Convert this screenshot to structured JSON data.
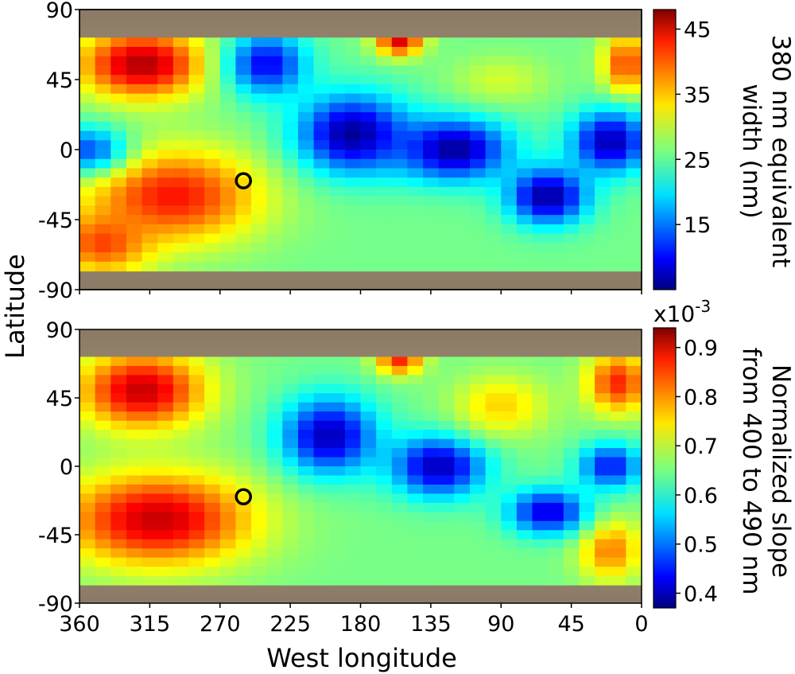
{
  "chart_data": [
    {
      "type": "heatmap",
      "panel": "top",
      "xlim": [
        360,
        0
      ],
      "ylim": [
        -90,
        90
      ],
      "x_ticks": [
        360,
        315,
        270,
        225,
        180,
        135,
        90,
        45,
        0
      ],
      "y_ticks": [
        90,
        45,
        0,
        -45,
        -90
      ],
      "y_tick_labels": [
        "90",
        "45",
        "0",
        "-45",
        "-90"
      ],
      "colorbar": {
        "label_lines": [
          "380 nm equivalent",
          "width (nm)"
        ],
        "range": [
          5,
          48
        ],
        "ticks": [
          45,
          35,
          25,
          15
        ],
        "tick_labels": [
          "45",
          "35",
          "25",
          "15"
        ],
        "colormap": "jet"
      },
      "marker": {
        "lon": 255,
        "lat": -20,
        "shape": "open-circle"
      },
      "blobs": [
        {
          "lon": 320,
          "lat": 55,
          "v": 46,
          "rx": 40,
          "ry": 22
        },
        {
          "lon": 300,
          "lat": -30,
          "v": 42,
          "rx": 55,
          "ry": 30
        },
        {
          "lon": 345,
          "lat": -60,
          "v": 40,
          "rx": 30,
          "ry": 20
        },
        {
          "lon": 155,
          "lat": 70,
          "v": 44,
          "rx": 15,
          "ry": 10
        },
        {
          "lon": 10,
          "lat": 55,
          "v": 40,
          "rx": 15,
          "ry": 20
        },
        {
          "lon": 240,
          "lat": 55,
          "v": 10,
          "rx": 25,
          "ry": 20
        },
        {
          "lon": 185,
          "lat": 10,
          "v": 6,
          "rx": 35,
          "ry": 25
        },
        {
          "lon": 120,
          "lat": 0,
          "v": 6,
          "rx": 35,
          "ry": 20
        },
        {
          "lon": 60,
          "lat": -30,
          "v": 6,
          "rx": 25,
          "ry": 18
        },
        {
          "lon": 20,
          "lat": 5,
          "v": 7,
          "rx": 25,
          "ry": 20
        },
        {
          "lon": 355,
          "lat": 0,
          "v": 14,
          "rx": 25,
          "ry": 15
        },
        {
          "lon": 90,
          "lat": 45,
          "v": 30,
          "rx": 30,
          "ry": 15
        }
      ],
      "base_value": 26
    },
    {
      "type": "heatmap",
      "panel": "bottom",
      "xlabel": "West longitude",
      "ylabel": "Latitude",
      "xlim": [
        360,
        0
      ],
      "ylim": [
        -90,
        90
      ],
      "x_ticks": [
        360,
        315,
        270,
        225,
        180,
        135,
        90,
        45,
        0
      ],
      "x_tick_labels": [
        "360",
        "315",
        "270",
        "225",
        "180",
        "135",
        "90",
        "45",
        "0"
      ],
      "y_ticks": [
        90,
        45,
        0,
        -45,
        -90
      ],
      "y_tick_labels": [
        "90",
        "45",
        "0",
        "-45",
        "-90"
      ],
      "colorbar": {
        "label_lines": [
          "Normalized slope",
          "from 400 to 490 nm"
        ],
        "scale_text": "x10",
        "scale_exponent": "-3",
        "range": [
          0.37,
          0.94
        ],
        "ticks": [
          0.9,
          0.8,
          0.7,
          0.6,
          0.5,
          0.4
        ],
        "tick_labels": [
          "0.9",
          "0.8",
          "0.7",
          "0.6",
          "0.5",
          "0.4"
        ],
        "colormap": "jet"
      },
      "marker": {
        "lon": 255,
        "lat": -20,
        "shape": "open-circle"
      },
      "blobs": [
        {
          "lon": 320,
          "lat": 50,
          "v": 0.9,
          "rx": 40,
          "ry": 25
        },
        {
          "lon": 310,
          "lat": -35,
          "v": 0.9,
          "rx": 60,
          "ry": 30
        },
        {
          "lon": 155,
          "lat": 70,
          "v": 0.85,
          "rx": 15,
          "ry": 10
        },
        {
          "lon": 15,
          "lat": 55,
          "v": 0.85,
          "rx": 20,
          "ry": 20
        },
        {
          "lon": 20,
          "lat": -55,
          "v": 0.8,
          "rx": 20,
          "ry": 20
        },
        {
          "lon": 200,
          "lat": 20,
          "v": 0.4,
          "rx": 30,
          "ry": 25
        },
        {
          "lon": 130,
          "lat": 0,
          "v": 0.4,
          "rx": 30,
          "ry": 20
        },
        {
          "lon": 60,
          "lat": -30,
          "v": 0.42,
          "rx": 25,
          "ry": 15
        },
        {
          "lon": 20,
          "lat": 0,
          "v": 0.45,
          "rx": 20,
          "ry": 15
        },
        {
          "lon": 90,
          "lat": 40,
          "v": 0.75,
          "rx": 30,
          "ry": 20
        }
      ],
      "base_value": 0.65
    }
  ]
}
